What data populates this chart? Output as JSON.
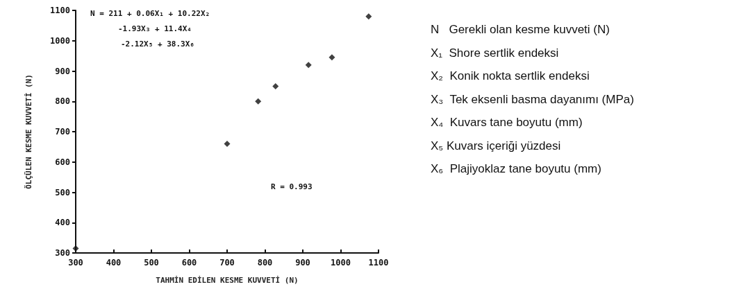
{
  "chart_data": {
    "type": "scatter",
    "xlabel": "TAHMİN EDİLEN KESME KUVVETİ (N)",
    "ylabel": "ÖLÇÜLEN KESME KUVVETİ (N)",
    "x": [
      300,
      700,
      782,
      828,
      915,
      977,
      1074
    ],
    "values": [
      315,
      660,
      800,
      850,
      920,
      945,
      1080
    ],
    "color": "#111111",
    "marker": "diamond",
    "xlim": [
      300,
      1100
    ],
    "xticks": [
      300,
      400,
      500,
      600,
      700,
      800,
      900,
      1000,
      1100
    ],
    "ylim": [
      300,
      1100
    ],
    "yticks": [
      300,
      400,
      500,
      600,
      700,
      800,
      900,
      1000,
      1100
    ],
    "grid": false,
    "annotations": [
      "N = 211 + 0.06X₁ + 10.22X₂",
      "-1.93X₃ + 11.4X₄",
      "-2.12X₅ + 38.3X₆",
      "R = 0.993",
      "N   Gerekli olan kesme kuvveti (N)",
      "X₁  Shore sertlik endeksi",
      "X₂  Konik nokta sertlik endeksi",
      "X₃  Tek eksenli basma dayanımı (MPa)",
      "X₄  Kuvars tane boyutu (mm)",
      "X₅ Kuvars içeriği yüzdesi",
      "X₆  Plajiyoklaz tane boyutu (mm)"
    ]
  }
}
